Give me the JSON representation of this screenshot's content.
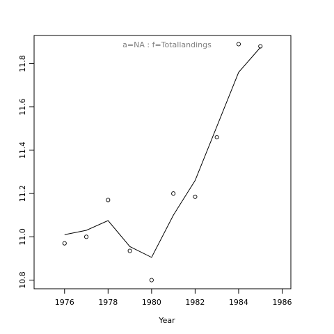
{
  "chart_data": {
    "type": "scatter",
    "title": "a=NA  :  f=Totallandings",
    "xlabel": "Year",
    "ylabel": "",
    "xlim": [
      1974.6,
      1986.4
    ],
    "ylim": [
      10.76,
      11.93
    ],
    "x_ticks": [
      "1976",
      "1978",
      "1980",
      "1982",
      "1984",
      "1986"
    ],
    "y_ticks": [
      "10.8",
      "11.0",
      "11.2",
      "11.4",
      "11.6",
      "11.8"
    ],
    "grid": false,
    "series": [
      {
        "type": "points",
        "x": [
          1976,
          1977,
          1978,
          1979,
          1980,
          1981,
          1982,
          1983,
          1984,
          1985
        ],
        "y": [
          10.97,
          11.0,
          11.17,
          10.935,
          10.8,
          11.2,
          11.185,
          11.46,
          11.89,
          11.88
        ]
      },
      {
        "type": "line",
        "x": [
          1976,
          1977,
          1978,
          1979,
          1980,
          1981,
          1982,
          1983,
          1984,
          1985
        ],
        "y": [
          11.01,
          11.03,
          11.075,
          10.955,
          10.905,
          11.1,
          11.26,
          11.51,
          11.76,
          11.875
        ]
      }
    ]
  }
}
